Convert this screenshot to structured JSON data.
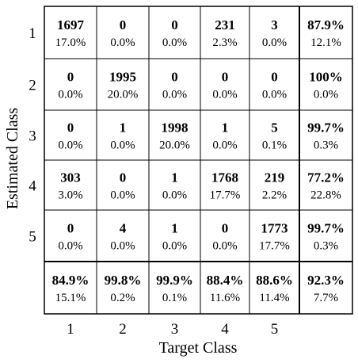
{
  "chart_data": {
    "type": "table",
    "title": "",
    "xlabel": "Target Class",
    "ylabel": "Estimated Class",
    "x_ticks": [
      "1",
      "2",
      "3",
      "4",
      "5"
    ],
    "y_ticks": [
      "1",
      "2",
      "3",
      "4",
      "5"
    ],
    "cells": [
      [
        {
          "count": "1697",
          "pct": "17.0%"
        },
        {
          "count": "0",
          "pct": "0.0%"
        },
        {
          "count": "0",
          "pct": "0.0%"
        },
        {
          "count": "231",
          "pct": "2.3%"
        },
        {
          "count": "3",
          "pct": "0.0%"
        }
      ],
      [
        {
          "count": "0",
          "pct": "0.0%"
        },
        {
          "count": "1995",
          "pct": "20.0%"
        },
        {
          "count": "0",
          "pct": "0.0%"
        },
        {
          "count": "0",
          "pct": "0.0%"
        },
        {
          "count": "0",
          "pct": "0.0%"
        }
      ],
      [
        {
          "count": "0",
          "pct": "0.0%"
        },
        {
          "count": "1",
          "pct": "0.0%"
        },
        {
          "count": "1998",
          "pct": "20.0%"
        },
        {
          "count": "1",
          "pct": "0.0%"
        },
        {
          "count": "5",
          "pct": "0.1%"
        }
      ],
      [
        {
          "count": "303",
          "pct": "3.0%"
        },
        {
          "count": "0",
          "pct": "0.0%"
        },
        {
          "count": "1",
          "pct": "0.0%"
        },
        {
          "count": "1768",
          "pct": "17.7%"
        },
        {
          "count": "219",
          "pct": "2.2%"
        }
      ],
      [
        {
          "count": "0",
          "pct": "0.0%"
        },
        {
          "count": "4",
          "pct": "0.0%"
        },
        {
          "count": "1",
          "pct": "0.0%"
        },
        {
          "count": "0",
          "pct": "0.0%"
        },
        {
          "count": "1773",
          "pct": "17.7%"
        }
      ]
    ],
    "row_summary": [
      {
        "correct": "87.9%",
        "error": "12.1%"
      },
      {
        "correct": "100%",
        "error": "0.0%"
      },
      {
        "correct": "99.7%",
        "error": "0.3%"
      },
      {
        "correct": "77.2%",
        "error": "22.8%"
      },
      {
        "correct": "99.7%",
        "error": "0.3%"
      }
    ],
    "column_summary": [
      {
        "correct": "84.9%",
        "error": "15.1%"
      },
      {
        "correct": "99.8%",
        "error": "0.2%"
      },
      {
        "correct": "99.9%",
        "error": "0.1%"
      },
      {
        "correct": "88.4%",
        "error": "11.6%"
      },
      {
        "correct": "88.6%",
        "error": "11.4%"
      }
    ],
    "overall": {
      "correct": "92.3%",
      "error": "7.7%"
    },
    "grid": true
  }
}
